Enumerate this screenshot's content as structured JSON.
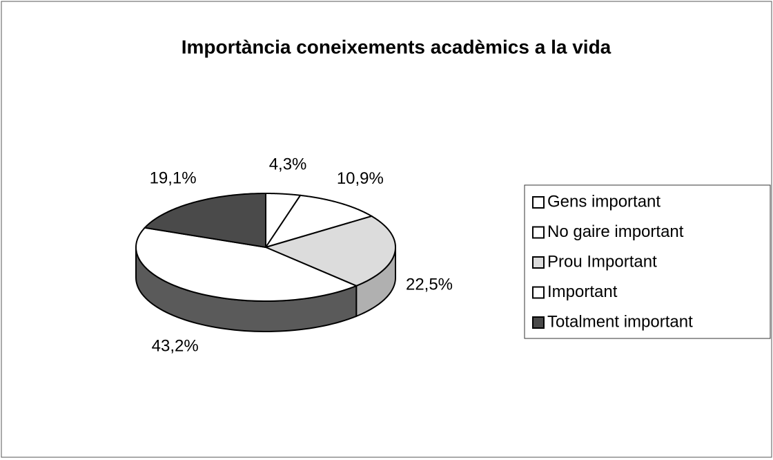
{
  "chart_data": {
    "type": "pie",
    "title": "Importància coneixements acadèmics a la vida",
    "categories": [
      "Gens important",
      "No gaire important",
      "Prou Important",
      "Important",
      "Totalment important"
    ],
    "values": [
      4.3,
      10.9,
      22.5,
      43.2,
      19.1
    ],
    "value_labels": [
      "4,3%",
      "10,9%",
      "22,5%",
      "43,2%",
      "19,1%"
    ],
    "colors": [
      "#ffffff",
      "#ffffff",
      "#dcdcdc",
      "#ffffff",
      "#4a4a4a"
    ],
    "legend": "right"
  }
}
